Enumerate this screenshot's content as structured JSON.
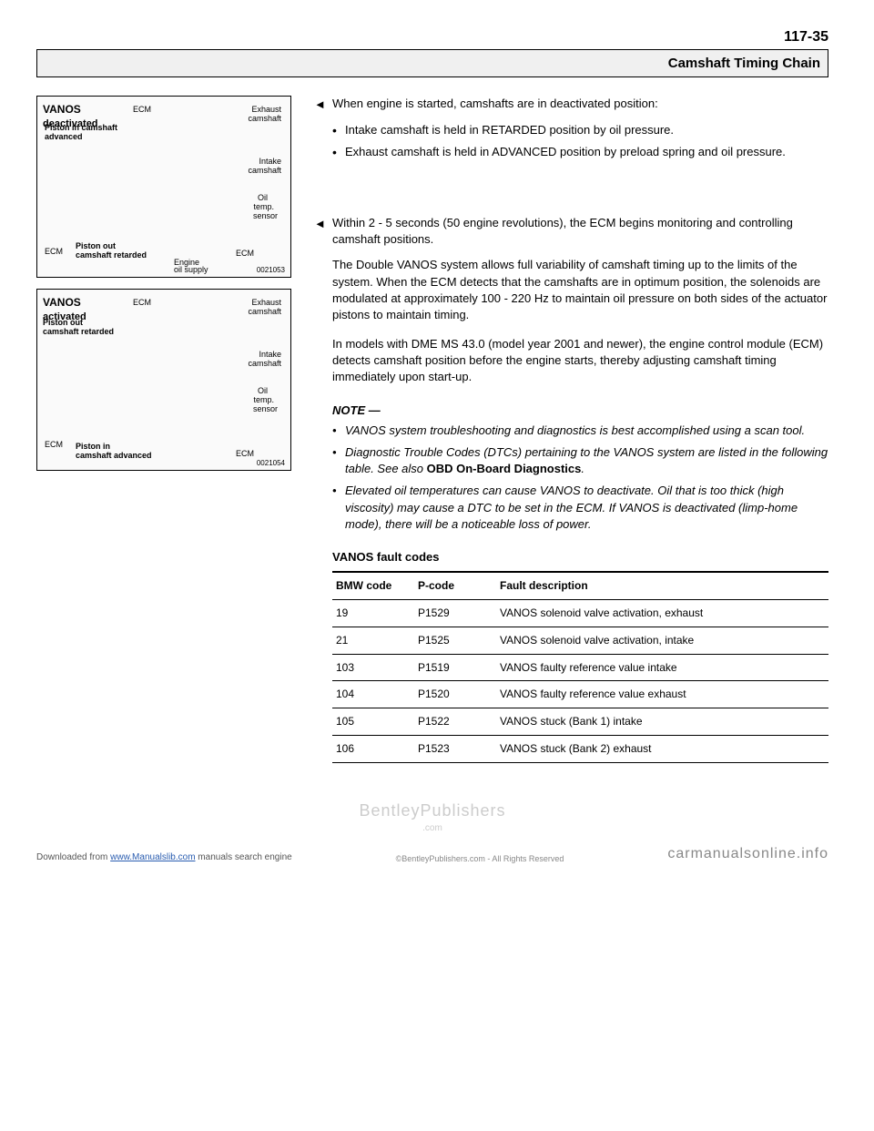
{
  "page_number": "117-35",
  "header_title": "Camshaft Timing Chain",
  "diagram1": {
    "title": "VANOS",
    "subtitle": "deactivated",
    "ecm_top": "ECM",
    "exhaust": "Exhaust",
    "camshaft": "camshaft",
    "piston_adv": "Piston in camshaft",
    "advanced": "advanced",
    "intake": "Intake",
    "oil": "Oil",
    "temp": "temp.",
    "sensor": "sensor",
    "ecm_left": "ECM",
    "piston_out": "Piston out",
    "cam_retarded": "camshaft retarded",
    "engine": "Engine",
    "oil_supply": "oil supply",
    "ecm_right": "ECM",
    "ref": "0021053"
  },
  "diagram2": {
    "title": "VANOS",
    "subtitle": "activated",
    "ecm_top": "ECM",
    "exhaust": "Exhaust",
    "camshaft": "camshaft",
    "piston_out": "Piston out",
    "cam_retarded": "camshaft retarded",
    "intake": "Intake",
    "oil": "Oil",
    "temp": "temp.",
    "sensor": "sensor",
    "ecm_left": "ECM",
    "piston_in": "Piston in",
    "cam_advanced": "camshaft advanced",
    "ecm_right": "ECM",
    "ref": "0021054"
  },
  "text": {
    "p1": "When engine is started, camshafts are in deactivated position:",
    "b1a": "Intake camshaft is held in RETARDED position by oil pressure.",
    "b1b": "Exhaust camshaft is held in ADVANCED position by preload spring and oil pressure.",
    "p2": "Within 2 - 5 seconds (50 engine revolutions), the ECM begins monitoring and controlling camshaft positions.",
    "p3": "The Double VANOS system allows full variability of camshaft timing up to the limits of the system. When the ECM detects that the camshafts are in optimum position, the solenoids are modulated at approximately 100 - 220 Hz to maintain oil pressure on both sides of the actuator pistons to maintain timing.",
    "p4": "In models with DME MS 43.0 (model year 2001 and newer), the engine control module (ECM) detects camshaft position before the engine starts, thereby adjusting camshaft timing immediately upon start-up.",
    "note_header": "NOTE —",
    "n1": "VANOS system troubleshooting and diagnostics is best accomplished using a scan tool.",
    "n2a": "Diagnostic Trouble Codes (DTCs) pertaining to the VANOS system are listed in the following table. See also ",
    "n2b": "OBD On-Board Diagnostics",
    "n2c": ".",
    "n3": "Elevated oil temperatures can cause VANOS to deactivate. Oil that is too thick (high viscosity) may cause a DTC to be set in the ECM. If VANOS is deactivated (limp-home mode), there will be a noticeable loss of power.",
    "table_title": "VANOS fault codes"
  },
  "table": {
    "headers": [
      "BMW code",
      "P-code",
      "Fault description"
    ],
    "rows": [
      [
        "19",
        "P1529",
        "VANOS solenoid valve activation, exhaust"
      ],
      [
        "21",
        "P1525",
        "VANOS solenoid valve activation, intake"
      ],
      [
        "103",
        "P1519",
        "VANOS faulty reference value intake"
      ],
      [
        "104",
        "P1520",
        "VANOS faulty reference value exhaust"
      ],
      [
        "105",
        "P1522",
        "VANOS stuck (Bank 1) intake"
      ],
      [
        "106",
        "P1523",
        "VANOS stuck (Bank 2) exhaust"
      ]
    ]
  },
  "footer": {
    "watermark": "BentleyPublishers",
    "watermark_sub": ".com",
    "left_pre": "Downloaded from ",
    "left_link": "www.Manualslib.com",
    "left_post": " manuals search engine",
    "center": "©BentleyPublishers.com - All Rights Reserved",
    "right": "carmanualsonline.info"
  }
}
